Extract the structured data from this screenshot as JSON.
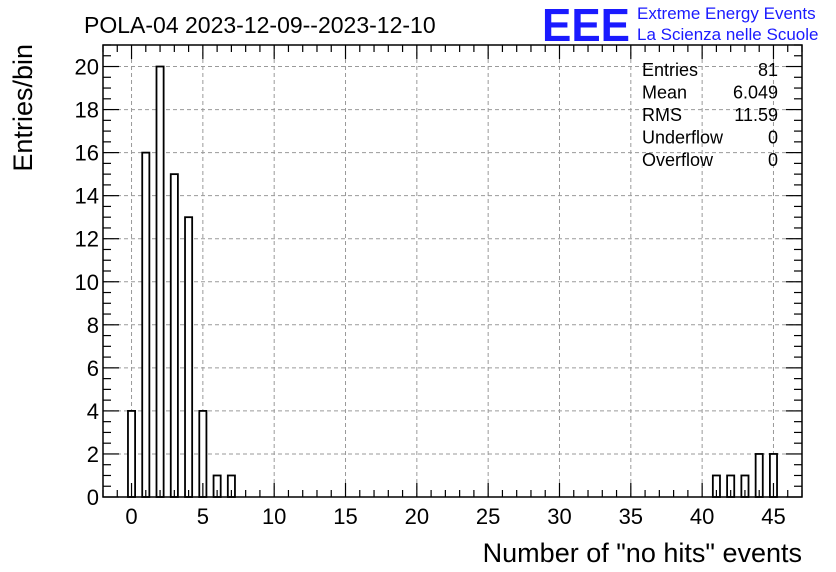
{
  "chart_data": {
    "type": "bar",
    "title": "POLA-04 2023-12-09--2023-12-10",
    "xlabel": "Number of \"no hits\" events",
    "ylabel": "Entries/bin",
    "xlim": [
      -2,
      47
    ],
    "ylim": [
      0,
      21
    ],
    "grid": true,
    "x_ticks": [
      0,
      5,
      10,
      15,
      20,
      25,
      30,
      35,
      40,
      45
    ],
    "y_ticks": [
      0,
      2,
      4,
      6,
      8,
      10,
      12,
      14,
      16,
      18,
      20
    ],
    "bin_width": 1,
    "bar_fill_fraction": 0.5,
    "bins": [
      {
        "x": 0,
        "count": 4
      },
      {
        "x": 1,
        "count": 16
      },
      {
        "x": 2,
        "count": 20
      },
      {
        "x": 3,
        "count": 15
      },
      {
        "x": 4,
        "count": 13
      },
      {
        "x": 5,
        "count": 4
      },
      {
        "x": 6,
        "count": 1
      },
      {
        "x": 7,
        "count": 1
      },
      {
        "x": 41,
        "count": 1
      },
      {
        "x": 42,
        "count": 1
      },
      {
        "x": 43,
        "count": 1
      },
      {
        "x": 44,
        "count": 2
      },
      {
        "x": 45,
        "count": 2
      }
    ]
  },
  "stats": [
    {
      "name": "Entries",
      "value": "81"
    },
    {
      "name": "Mean",
      "value": "6.049"
    },
    {
      "name": "RMS",
      "value": "11.59"
    },
    {
      "name": "Underflow",
      "value": "0"
    },
    {
      "name": "Overflow",
      "value": "0"
    }
  ],
  "logo": {
    "mark": "EEE",
    "line1": "Extreme Energy Events",
    "line2": "La Scienza nelle Scuole",
    "color": "#1a1aff"
  }
}
